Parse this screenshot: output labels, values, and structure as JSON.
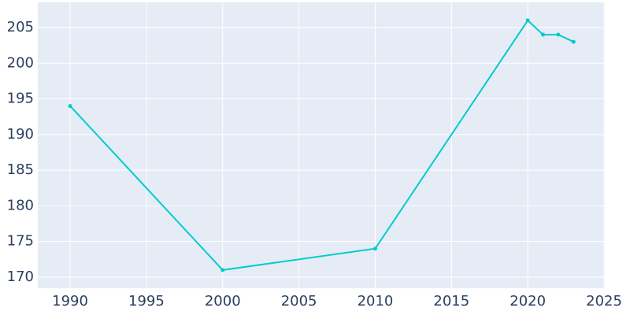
{
  "chart_data": {
    "type": "line",
    "x": [
      1990,
      2000,
      2010,
      2020,
      2021,
      2022,
      2023
    ],
    "series": [
      {
        "color": "#00cccc",
        "values": [
          194,
          171,
          174,
          206,
          204,
          204,
          203
        ]
      }
    ],
    "xlim": [
      1987.88,
      2025.05
    ],
    "xticks": [
      1990,
      1995,
      2000,
      2005,
      2010,
      2015,
      2020,
      2025
    ],
    "ylim": [
      168.45,
      208.53
    ],
    "yticks": [
      170,
      175,
      180,
      185,
      190,
      195,
      200,
      205
    ],
    "grid": true
  }
}
